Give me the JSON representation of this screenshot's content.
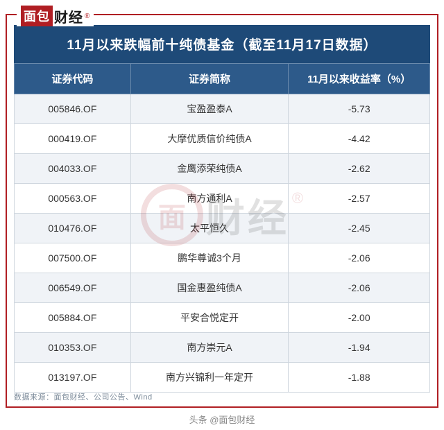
{
  "logo": {
    "red_text": "面包",
    "black_text": "财经",
    "reg": "®"
  },
  "table": {
    "title": "11月以来跌幅前十纯债基金（截至11月17日数据）",
    "columns": [
      "证券代码",
      "证券简称",
      "11月以来收益率（%）"
    ],
    "rows": [
      [
        "005846.OF",
        "宝盈盈泰A",
        "-5.73"
      ],
      [
        "000419.OF",
        "大摩优质信价纯债A",
        "-4.42"
      ],
      [
        "004033.OF",
        "金鹰添荣纯债A",
        "-2.62"
      ],
      [
        "000563.OF",
        "南方通利A",
        "-2.57"
      ],
      [
        "010476.OF",
        "太平恒久",
        "-2.45"
      ],
      [
        "007500.OF",
        "鹏华尊诚3个月",
        "-2.06"
      ],
      [
        "006549.OF",
        "国金惠盈纯债A",
        "-2.06"
      ],
      [
        "005884.OF",
        "平安合悦定开",
        "-2.00"
      ],
      [
        "010353.OF",
        "南方崇元A",
        "-1.94"
      ],
      [
        "013197.OF",
        "南方兴锦利一年定开",
        "-1.88"
      ]
    ],
    "header_bg": "#2d5a8a",
    "title_bg": "#1e4a78",
    "row_odd_bg": "#f0f3f7",
    "row_even_bg": "#ffffff",
    "border_color": "#cfd6de"
  },
  "source": "数据来源：面包财经、公司公告、Wind",
  "watermark": {
    "circle_char": "面",
    "text": "财经",
    "reg": "®"
  },
  "footer": "头条 @面包财经",
  "frame_color": "#b01e23"
}
